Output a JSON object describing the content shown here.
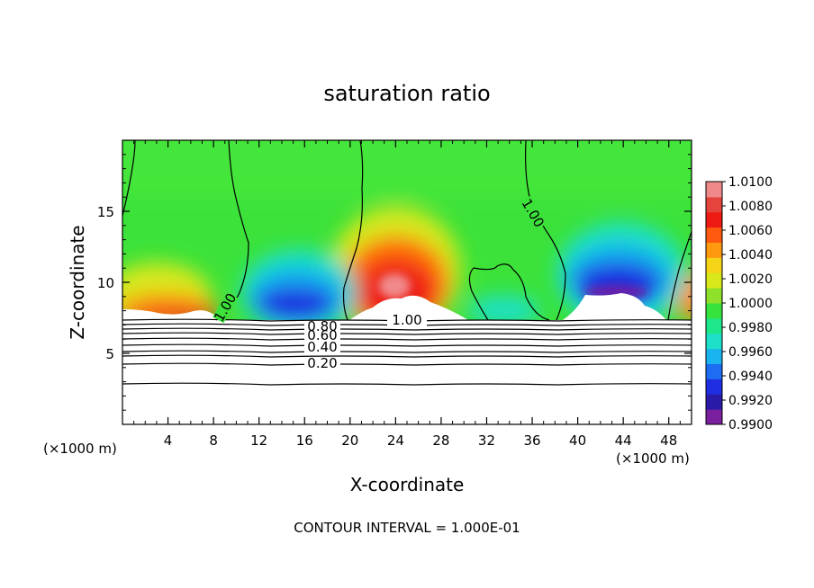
{
  "chart_data": {
    "type": "heatmap",
    "title": "saturation ratio",
    "xlabel": "X-coordinate",
    "ylabel": "Z-coordinate",
    "x_unit_left": "(×1000 m)",
    "x_unit_right": "(×1000 m)",
    "xlim": [
      0,
      50
    ],
    "ylim": [
      0,
      20
    ],
    "x_ticks": [
      4,
      8,
      12,
      16,
      20,
      24,
      28,
      32,
      36,
      40,
      44,
      48
    ],
    "y_ticks": [
      5,
      10,
      15
    ],
    "footer": "CONTOUR INTERVAL = 1.000E-01",
    "colorbar": {
      "ticks": [
        "1.0100",
        "1.0080",
        "1.0060",
        "1.0040",
        "1.0020",
        "1.0000",
        "0.9980",
        "0.9960",
        "0.9940",
        "0.9920",
        "0.9900"
      ],
      "min": 0.99,
      "max": 1.01,
      "colors": [
        "#7a1f9e",
        "#2a1aa8",
        "#1f2ee0",
        "#1e6cf2",
        "#19b4f0",
        "#1ee0c8",
        "#1ee68a",
        "#36e23c",
        "#8ee02a",
        "#d8e81a",
        "#f5d418",
        "#ff9a10",
        "#ff5a10",
        "#ee1a14",
        "#e4443c",
        "#f08a8a"
      ]
    },
    "contour_labels": [
      {
        "text": "1.00",
        "x": 11.0,
        "y": 8.3
      },
      {
        "text": "1.00",
        "x": 25.0,
        "y": 7.5
      },
      {
        "text": "1.00",
        "x": 36.0,
        "y": 15.0
      },
      {
        "text": "0.80",
        "x": 17.5,
        "y": 6.9
      },
      {
        "text": "0.60",
        "x": 17.5,
        "y": 6.2
      },
      {
        "text": "0.40",
        "x": 17.5,
        "y": 5.3
      },
      {
        "text": "0.20",
        "x": 17.5,
        "y": 4.2
      }
    ],
    "field_description": {
      "background_value": 0.9995,
      "maxima": [
        {
          "x": 5,
          "z": 9.0,
          "value": 1.006
        },
        {
          "x": 24,
          "z": 10.5,
          "value": 1.008
        },
        {
          "x": 49.5,
          "z": 8.5,
          "value": 1.004
        }
      ],
      "minima": [
        {
          "x": 15,
          "z": 8.5,
          "value": 0.992
        },
        {
          "x": 43,
          "z": 9.5,
          "value": 0.991
        }
      ]
    }
  }
}
